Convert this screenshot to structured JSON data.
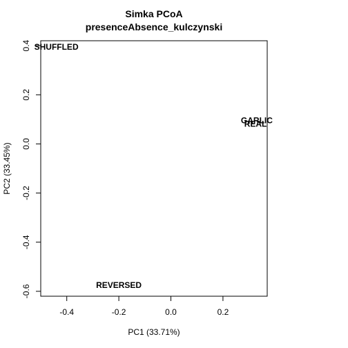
{
  "chart_data": {
    "type": "scatter",
    "title": "Simka PCoA",
    "subtitle": "presenceAbsence_kulczynski",
    "xlabel": "PC1 (33.71%)",
    "ylabel": "PC2 (33.45%)",
    "xlim": [
      -0.5,
      0.37
    ],
    "ylim": [
      -0.62,
      0.42
    ],
    "xticks": [
      "-0.4",
      "-0.2",
      "0.0",
      "0.2"
    ],
    "yticks": [
      "-0.6",
      "-0.4",
      "-0.2",
      "0.0",
      "0.2",
      "0.4"
    ],
    "grid": false,
    "points": [
      {
        "label": "SHUFFLED",
        "x": -0.44,
        "y": 0.395
      },
      {
        "label": "GARLIC",
        "x": 0.33,
        "y": 0.095
      },
      {
        "label": "REAL",
        "x": 0.325,
        "y": 0.082
      },
      {
        "label": "REVERSED",
        "x": -0.2,
        "y": -0.575
      }
    ]
  }
}
